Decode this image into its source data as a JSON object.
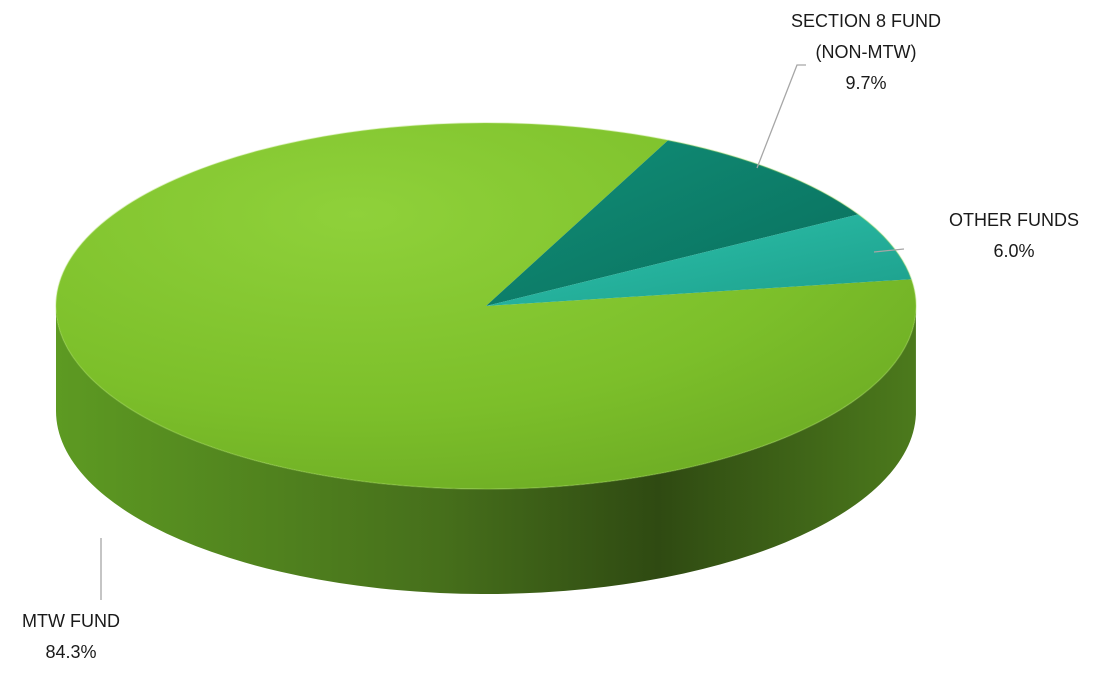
{
  "chart_data": {
    "type": "pie",
    "title": "",
    "categories": [
      "MTW FUND",
      "SECTION 8 FUND (NON-MTW)",
      "OTHER FUNDS"
    ],
    "values": [
      84.3,
      9.7,
      6.0
    ],
    "value_unit": "%",
    "data_labels": [
      {
        "lines": [
          "MTW FUND",
          "84.3%"
        ]
      },
      {
        "lines": [
          "SECTION 8 FUND",
          "(NON-MTW)",
          "9.7%"
        ]
      },
      {
        "lines": [
          "OTHER FUNDS",
          "6.0%"
        ]
      }
    ],
    "colors": [
      "#7cbf2a",
      "#0c8f76",
      "#25b8a2"
    ],
    "style": "3d-pie",
    "legend": "none"
  }
}
